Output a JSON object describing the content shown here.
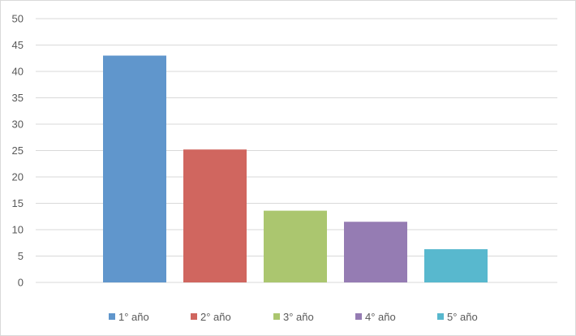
{
  "chart_data": {
    "type": "bar",
    "title": "",
    "xlabel": "",
    "ylabel": "",
    "ylim": [
      0,
      50
    ],
    "yticks": [
      0,
      5,
      10,
      15,
      20,
      25,
      30,
      35,
      40,
      45,
      50
    ],
    "grid": true,
    "legend": "bottom",
    "series": [
      {
        "name": "1° año",
        "value": 43,
        "color": "#6096CC"
      },
      {
        "name": "2° año",
        "value": 25.2,
        "color": "#D0665F"
      },
      {
        "name": "3° año",
        "value": 13.6,
        "color": "#ABC66F"
      },
      {
        "name": "4° año",
        "value": 11.5,
        "color": "#957CB3"
      },
      {
        "name": "5° año",
        "value": 6.3,
        "color": "#58B8CE"
      }
    ]
  }
}
